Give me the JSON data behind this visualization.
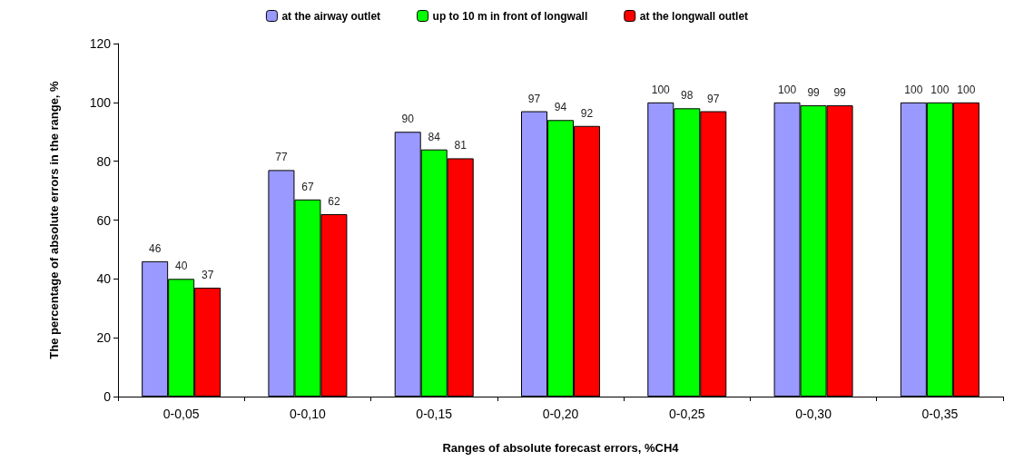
{
  "chart_data": {
    "type": "bar",
    "xlabel": "Ranges of absolute forecast errors, %CH4",
    "ylabel": "The percentage of absolute errors in the range, %",
    "categories": [
      "0-0,05",
      "0-0,10",
      "0-0,15",
      "0-0,20",
      "0-0,25",
      "0-0,30",
      "0-0,35"
    ],
    "series": [
      {
        "name": "at the airway outlet",
        "color": "#9999ff",
        "values": [
          46,
          77,
          90,
          97,
          100,
          100,
          100
        ]
      },
      {
        "name": "up to 10 m in front of longwall",
        "color": "#00ff00",
        "values": [
          40,
          67,
          84,
          94,
          98,
          99,
          100
        ]
      },
      {
        "name": "at the longwall outlet",
        "color": "#ff0000",
        "values": [
          37,
          62,
          81,
          92,
          97,
          99,
          100
        ]
      }
    ],
    "ylim": [
      0,
      120
    ],
    "yticks": [
      0,
      20,
      40,
      60,
      80,
      100,
      120
    ],
    "grid": false,
    "legend": "top",
    "data_labels": true
  }
}
